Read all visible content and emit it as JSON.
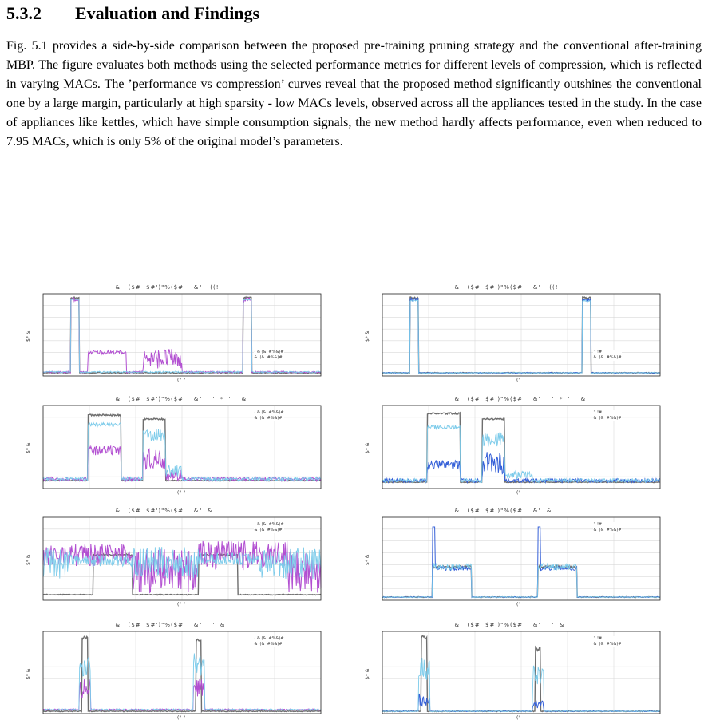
{
  "section": {
    "number": "5.3.2",
    "title": "Evaluation and Findings"
  },
  "paragraph": "Fig. 5.1 provides a side-by-side comparison between the proposed pre-training pruning strategy and the conventional after-training MBP. The figure evaluates both methods using the selected performance metrics for different levels of compression, which is reflected in varying MACs. The ’performance vs compression’ curves reveal that the proposed method significantly outshines the conventional one by a large margin, particularly at high sparsity - low MACs levels, observed across all the appliances tested in the study. In the case of appliances like kettles, which have simple consumption signals, the new method hardly affects performance, even when reduced to 7.95 MACs, which is only 5% of the original model’s parameters.",
  "figure": {
    "colors": {
      "ground_truth": "#6e6e6e",
      "purple": "#b24fd1",
      "blue": "#3560d8",
      "light_blue": "#7ccbea",
      "grid": "#d9d9d9"
    },
    "panels": [
      {
        "title": "&   ($#  $#')\"%($#    &\"   ((!",
        "ylabel": "$* &",
        "xlabel": "(\"  '",
        "legend": [
          "( & (&  #%&)#",
          "&  (&  #%&)#"
        ],
        "pred_color": "purple"
      },
      {
        "title": "&   ($#  $#')\"%($#    &\"   ((!",
        "ylabel": "$* &",
        "xlabel": "(\"  '",
        "legend": [
          "'  !#",
          "&  (&  #%&)#"
        ],
        "pred_color": "blue"
      },
      {
        "title": "&   ($#  $#')\"%($#    &\"    '  *  '    &",
        "ylabel": "$* &",
        "xlabel": "(\"  '",
        "legend": [
          "( & (&  #%&)#",
          "&  (&  #%&)#"
        ],
        "pred_color": "purple"
      },
      {
        "title": "&   ($#  $#')\"%($#    &\"    '  *  '    &",
        "ylabel": "$* &",
        "xlabel": "(\"  '",
        "legend": [
          "'  !#",
          "&  (&  #%&)#"
        ],
        "pred_color": "blue"
      },
      {
        "title": "&   ($#  $#')\"%($#    &\"  &",
        "ylabel": "$* &",
        "xlabel": "(\"  '",
        "legend": [
          "( & (&  #%&)#",
          "&  (&  #%&)#"
        ],
        "pred_color": "purple"
      },
      {
        "title": "&   ($#  $#')\"%($#    &\"  &",
        "ylabel": "$* &",
        "xlabel": "(\"  '",
        "legend": [
          "'  !#",
          "&  (&  #%&)#"
        ],
        "pred_color": "blue"
      },
      {
        "title": "&   ($#  $#')\"%($#    &\"    '  &",
        "ylabel": "$* &",
        "xlabel": "(\"  '",
        "legend": [
          "( & (&  #%&)#",
          "&  (&  #%&)#"
        ],
        "pred_color": "purple"
      },
      {
        "title": "&   ($#  $#')\"%($#    &\"    '  &",
        "ylabel": "$* &",
        "xlabel": "(\"  '",
        "legend": [
          "'  !#",
          "&  (&  #%&)#"
        ],
        "pred_color": "blue"
      }
    ]
  }
}
